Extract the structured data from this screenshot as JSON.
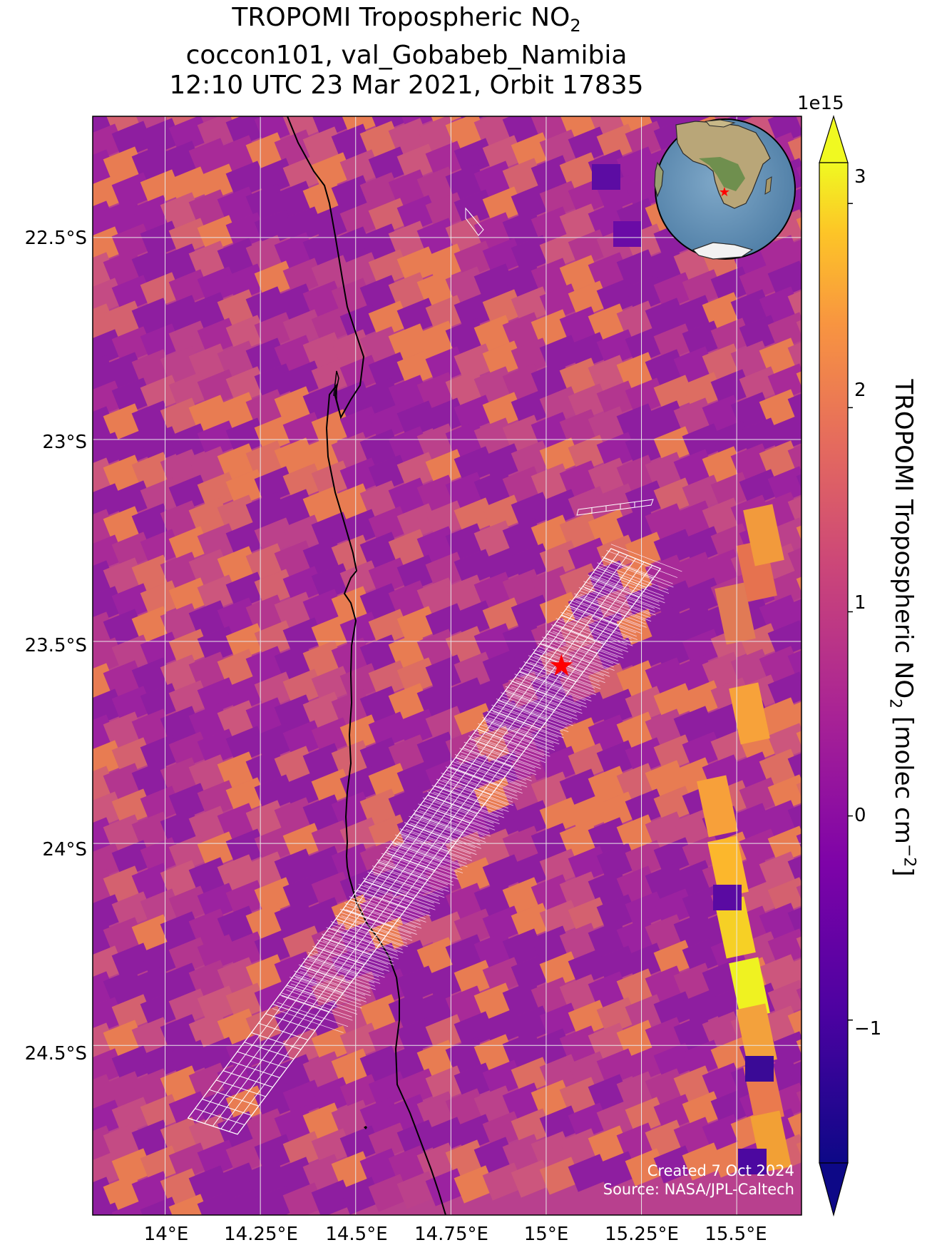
{
  "title": {
    "line1_prefix": "TROPOMI Tropospheric NO",
    "line1_sub": "2",
    "line2": "coccon101, val_Gobabeb_Namibia",
    "line3": "12:10 UTC 23 Mar 2021, Orbit 17835"
  },
  "axes": {
    "lon_ticks": [
      "14°E",
      "14.25°E",
      "14.5°E",
      "14.75°E",
      "15°E",
      "15.25°E",
      "15.5°E"
    ],
    "lat_ticks": [
      "22.5°S",
      "23°S",
      "23.5°S",
      "24°S",
      "24.5°S"
    ],
    "lon_range": [
      13.81,
      15.67
    ],
    "lat_range": [
      -24.92,
      -22.2
    ],
    "grid": true
  },
  "colorbar": {
    "label_prefix": "TROPOMI Tropospheric NO",
    "label_sub": "2",
    "label_mid": " [molec cm",
    "label_sup": "−2",
    "label_end": "]",
    "exponent": "1e15",
    "ticks": [
      "3",
      "2",
      "1",
      "0",
      "−1"
    ],
    "tick_values": [
      3,
      2,
      1,
      0,
      -1
    ],
    "range": [
      -1.7,
      3.2
    ],
    "colormap": "plasma",
    "extend": "both"
  },
  "site": {
    "name": "val_Gobabeb_Namibia",
    "lon": 15.04,
    "lat": -23.56,
    "marker": "red-star",
    "color": "#ff0000"
  },
  "footprint": {
    "color": "#ffffff",
    "corners": [
      [
        14.06,
        -24.68
      ],
      [
        14.19,
        -24.72
      ],
      [
        15.3,
        -23.32
      ],
      [
        15.17,
        -23.27
      ]
    ]
  },
  "credits": {
    "created": "Created 7 Oct 2024",
    "source": "Source: NASA/JPL-Caltech"
  },
  "inset": {
    "type": "globe",
    "marker": "red-star"
  },
  "colors": {
    "background_field": "#b8408e",
    "coastline": "#000000",
    "gridline": "#e8e8e8"
  }
}
